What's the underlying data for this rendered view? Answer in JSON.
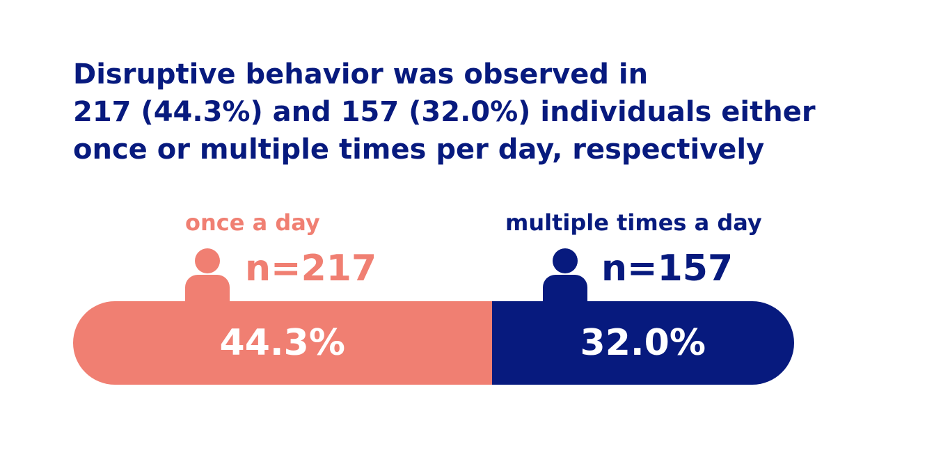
{
  "headline": {
    "line1": "Disruptive behavior was observed in",
    "line2": "217 (44.3%) and 157 (32.0%) individuals either",
    "line3": "once or multiple times per day, respectively"
  },
  "colors": {
    "once": "#f07f72",
    "multiple": "#071a7e"
  },
  "chart_data": {
    "type": "bar",
    "categories": [
      "once a day",
      "multiple times a day"
    ],
    "counts": [
      "n=217",
      "n=157"
    ],
    "values": [
      44.3,
      32.0
    ],
    "value_labels": [
      "44.3%",
      "32.0%"
    ]
  }
}
